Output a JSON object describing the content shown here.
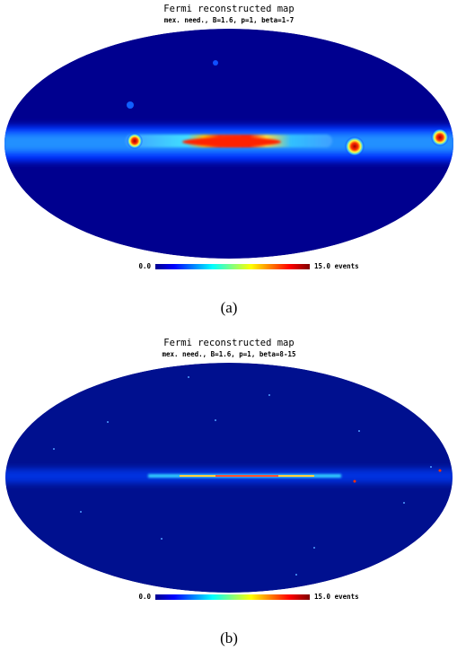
{
  "panels": [
    {
      "title": "Fermi reconstructed map",
      "subtitle": "mex. need., B=1.6, p=1, beta=1-7",
      "colorbar_min": "0.0",
      "colorbar_max": "15.0 events",
      "caption": "(a)"
    },
    {
      "title": "Fermi reconstructed map",
      "subtitle": "mex. need., B=1.6, p=1, beta=8-15",
      "colorbar_min": "0.0",
      "colorbar_max": "15.0 events",
      "caption": "(b)"
    }
  ]
}
